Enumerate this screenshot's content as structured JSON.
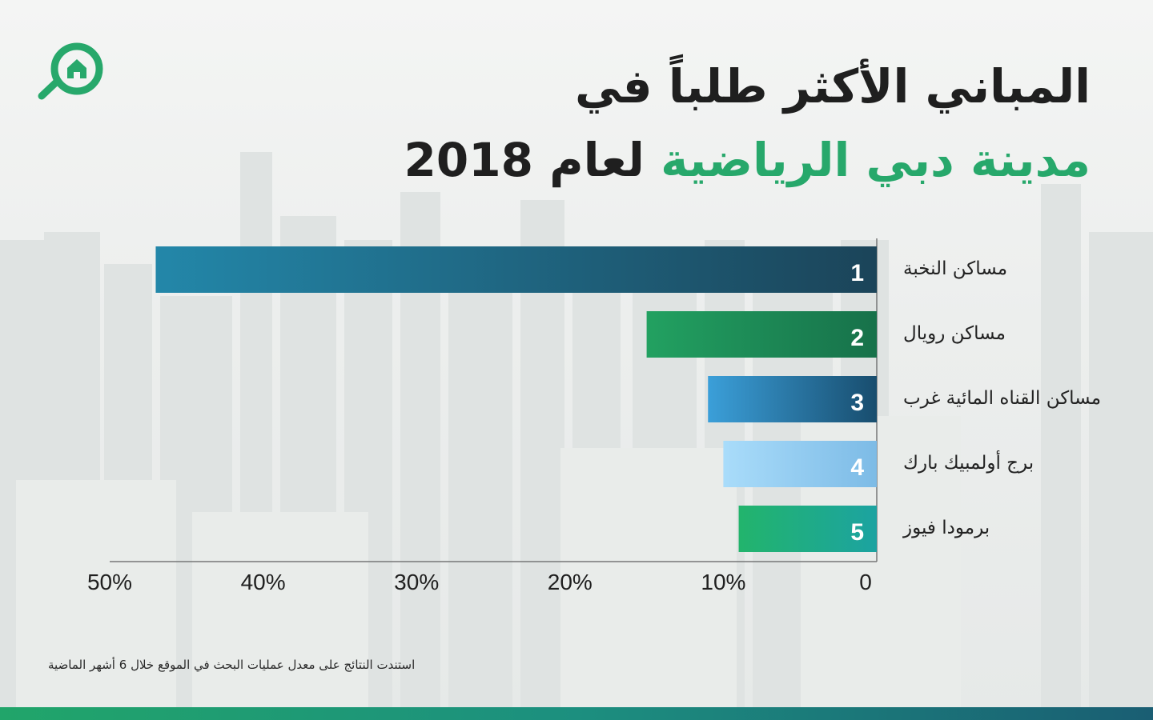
{
  "header": {
    "title_line1": "المباني الأكثر طلباً في",
    "title_line2_highlight": "مدينة دبي الرياضية",
    "title_line2_rest": "لعام 2018"
  },
  "footnote": "استندت النتائج على معدل عمليات البحث في الموقع خلال 6 أشهر الماضية",
  "logo": {
    "icon": "house-magnifier-icon",
    "color": "#27a86b"
  },
  "chart_data": {
    "type": "bar",
    "orientation": "horizontal",
    "direction": "right-to-left",
    "categories": [
      "مساكن النخبة",
      "مساكن رويال",
      "مساكن القناه المائية غرب",
      "برج أولمبيك بارك",
      "برمودا فيوز"
    ],
    "ranks": [
      "1",
      "2",
      "3",
      "4",
      "5"
    ],
    "values": [
      47,
      15,
      11,
      10,
      9
    ],
    "xlim": [
      0,
      50
    ],
    "ticks": [
      0,
      10,
      20,
      30,
      40,
      50
    ],
    "tick_labels": [
      "0",
      "10%",
      "20%",
      "30%",
      "40%",
      "50%"
    ],
    "grid": false,
    "colors": [
      [
        "#2387a9",
        "#1b4459"
      ],
      [
        "#22a161",
        "#17714a"
      ],
      [
        "#3b9fd9",
        "#184d6e"
      ],
      [
        "#a9dcfa",
        "#7dbbe6"
      ],
      [
        "#22b46c",
        "#1ca3a1"
      ]
    ]
  }
}
